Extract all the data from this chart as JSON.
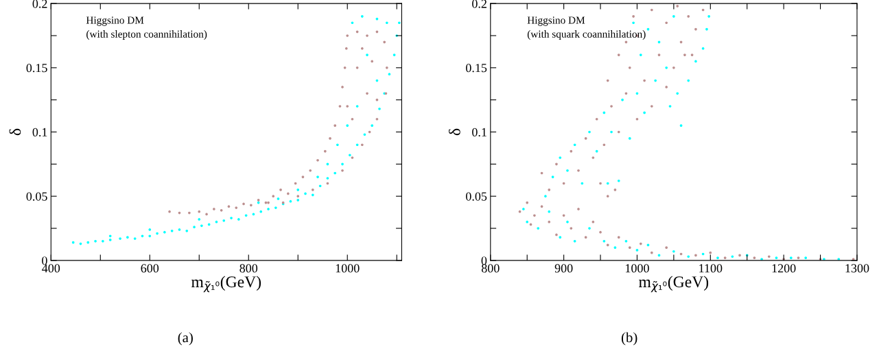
{
  "chart_data": [
    {
      "type": "scatter",
      "xlabel": "m$_{χ̃₁⁰}$(GeV)",
      "ylabel": "δ",
      "marker": "circle",
      "xlim": [
        400,
        1110
      ],
      "xticks": [
        400,
        {
          "value": 500,
          "label": null
        },
        600,
        {
          "value": 700,
          "label": null
        },
        800,
        {
          "value": 900,
          "label": null
        },
        1000,
        {
          "value": 1100,
          "label": null
        }
      ],
      "ylim": [
        0,
        0.2
      ],
      "yticks": [
        0,
        {
          "value": 0.025,
          "label": null
        },
        0.05,
        {
          "value": 0.075,
          "label": null
        },
        0.1,
        {
          "value": 0.125,
          "label": null
        },
        0.15,
        {
          "value": 0.175,
          "label": null
        },
        0.2
      ],
      "annotations": [
        "Higgsino DM\n(with slepton coannihilation)",
        "(a)"
      ],
      "series": [
        {
          "color": "#00ffff",
          "x": [
            445,
            460,
            475,
            490,
            505,
            520,
            540,
            555,
            570,
            585,
            600,
            615,
            630,
            645,
            660,
            675,
            690,
            705,
            720,
            735,
            750,
            765,
            780,
            795,
            810,
            825,
            840,
            855,
            870,
            885,
            900,
            915,
            930,
            945,
            960,
            975,
            990,
            1005,
            1020,
            1035,
            1050,
            1065,
            1075,
            1085,
            1095,
            1100,
            1105,
            1010,
            1030,
            1060,
            1080,
            1040,
            1060,
            1020,
            1000,
            980,
            960,
            940,
            900,
            860,
            820,
            700,
            600,
            520
          ],
          "values": [
            0.014,
            0.013,
            0.014,
            0.015,
            0.015,
            0.016,
            0.017,
            0.018,
            0.017,
            0.019,
            0.019,
            0.021,
            0.022,
            0.023,
            0.024,
            0.023,
            0.026,
            0.027,
            0.028,
            0.03,
            0.031,
            0.033,
            0.032,
            0.035,
            0.036,
            0.038,
            0.04,
            0.041,
            0.044,
            0.046,
            0.047,
            0.052,
            0.051,
            0.058,
            0.064,
            0.068,
            0.075,
            0.082,
            0.09,
            0.098,
            0.105,
            0.118,
            0.13,
            0.145,
            0.16,
            0.175,
            0.185,
            0.185,
            0.19,
            0.188,
            0.185,
            0.16,
            0.14,
            0.12,
            0.105,
            0.09,
            0.075,
            0.065,
            0.055,
            0.048,
            0.045,
            0.032,
            0.024,
            0.019
          ]
        },
        {
          "color": "#bc8f8f",
          "x": [
            640,
            660,
            680,
            700,
            715,
            730,
            745,
            760,
            775,
            790,
            805,
            820,
            835,
            850,
            865,
            880,
            895,
            910,
            925,
            940,
            955,
            965,
            975,
            985,
            990,
            995,
            998,
            1000,
            1020,
            1040,
            1060,
            1075,
            1080,
            1078,
            1060,
            1045,
            1030,
            1010,
            990,
            960,
            930,
            900,
            870,
            840,
            1020,
            1040,
            1010,
            1050,
            1030,
            1000,
            1060
          ],
          "values": [
            0.038,
            0.037,
            0.037,
            0.038,
            0.036,
            0.04,
            0.039,
            0.042,
            0.041,
            0.044,
            0.043,
            0.047,
            0.045,
            0.05,
            0.055,
            0.052,
            0.06,
            0.065,
            0.07,
            0.078,
            0.085,
            0.095,
            0.105,
            0.12,
            0.135,
            0.15,
            0.165,
            0.175,
            0.178,
            0.175,
            0.178,
            0.17,
            0.15,
            0.13,
            0.11,
            0.1,
            0.09,
            0.08,
            0.07,
            0.06,
            0.055,
            0.05,
            0.045,
            0.045,
            0.15,
            0.13,
            0.11,
            0.155,
            0.165,
            0.12,
            0.125
          ]
        }
      ]
    },
    {
      "type": "scatter",
      "xlabel": "m$_{χ̃₁⁰}$(GeV)",
      "ylabel": "δ",
      "marker": "circle",
      "xlim": [
        800,
        1300
      ],
      "xticks": [
        800,
        {
          "value": 850,
          "label": null
        },
        900,
        {
          "value": 950,
          "label": null
        },
        1000,
        {
          "value": 1050,
          "label": null
        },
        1100,
        {
          "value": 1150,
          "label": null
        },
        1200,
        {
          "value": 1250,
          "label": null
        },
        1300
      ],
      "ylim": [
        0,
        0.2
      ],
      "yticks": [
        0,
        {
          "value": 0.025,
          "label": null
        },
        0.05,
        {
          "value": 0.075,
          "label": null
        },
        0.1,
        {
          "value": 0.125,
          "label": null
        },
        0.15,
        {
          "value": 0.175,
          "label": null
        },
        0.2
      ],
      "annotations": [
        "Higgsino DM\n(with squark coannihilation)",
        "(b)"
      ],
      "series": [
        {
          "color": "#00ffff",
          "x": [
            845,
            850,
            865,
            880,
            895,
            905,
            915,
            935,
            955,
            970,
            985,
            1000,
            1015,
            1030,
            1050,
            1070,
            1090,
            1110,
            1130,
            1150,
            1170,
            1190,
            1210,
            1230,
            1255,
            1275,
            875,
            885,
            895,
            905,
            915,
            925,
            935,
            945,
            960,
            975,
            955,
            965,
            980,
            990,
            1000,
            1010,
            1025,
            1045,
            1055,
            1070,
            1080,
            1090,
            1095,
            1098,
            1005,
            1015,
            1030,
            1050,
            995,
            1040,
            1060
          ],
          "values": [
            0.04,
            0.03,
            0.025,
            0.038,
            0.018,
            0.03,
            0.015,
            0.025,
            0.015,
            0.01,
            0.015,
            0.008,
            0.012,
            0.004,
            0.007,
            0.003,
            0.005,
            0.002,
            0.003,
            0.004,
            0.001,
            0.002,
            0.002,
            0.002,
            0.001,
            0.001,
            0.05,
            0.065,
            0.08,
            0.07,
            0.09,
            0.06,
            0.1,
            0.085,
            0.06,
            0.062,
            0.115,
            0.1,
            0.125,
            0.095,
            0.13,
            0.115,
            0.14,
            0.12,
            0.13,
            0.14,
            0.155,
            0.165,
            0.18,
            0.19,
            0.16,
            0.18,
            0.17,
            0.19,
            0.185,
            0.15,
            0.105
          ]
        },
        {
          "color": "#bc8f8f",
          "x": [
            840,
            850,
            860,
            855,
            870,
            880,
            890,
            900,
            910,
            920,
            930,
            940,
            950,
            960,
            975,
            990,
            1005,
            1020,
            1040,
            1060,
            1080,
            1100,
            1120,
            1140,
            1160,
            1180,
            1200,
            1220,
            1250,
            1295,
            870,
            880,
            890,
            900,
            910,
            920,
            930,
            940,
            950,
            960,
            970,
            945,
            955,
            965,
            975,
            985,
            990,
            1000,
            1010,
            1020,
            1030,
            1040,
            1050,
            1060,
            1070,
            1080,
            1090,
            995,
            1000,
            1020,
            1040,
            1055,
            985,
            960,
            975,
            1065,
            1075
          ],
          "values": [
            0.038,
            0.045,
            0.035,
            0.028,
            0.042,
            0.03,
            0.02,
            0.035,
            0.025,
            0.04,
            0.018,
            0.03,
            0.022,
            0.012,
            0.018,
            0.01,
            0.013,
            0.006,
            0.01,
            0.005,
            0.004,
            0.006,
            0.002,
            0.004,
            0.002,
            0.003,
            0.001,
            0.002,
            0.001,
            0.001,
            0.068,
            0.055,
            0.075,
            0.06,
            0.085,
            0.07,
            0.095,
            0.08,
            0.06,
            0.05,
            0.055,
            0.11,
            0.09,
            0.12,
            0.1,
            0.13,
            0.15,
            0.11,
            0.14,
            0.12,
            0.16,
            0.135,
            0.15,
            0.17,
            0.19,
            0.18,
            0.195,
            0.19,
            0.175,
            0.195,
            0.185,
            0.198,
            0.17,
            0.14,
            0.16,
            0.16,
            0.16
          ]
        }
      ]
    }
  ]
}
